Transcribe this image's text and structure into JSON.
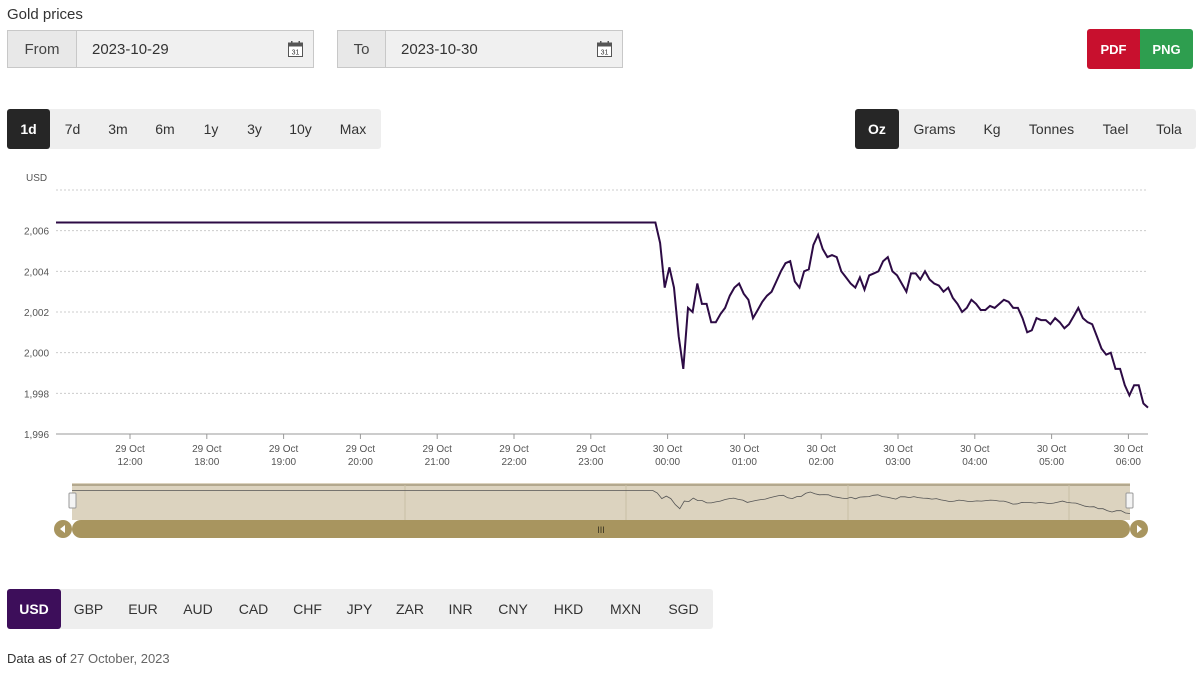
{
  "title": "Gold prices",
  "from": {
    "label": "From",
    "value": "2023-10-29"
  },
  "to": {
    "label": "To",
    "value": "2023-10-30"
  },
  "calendar_icon_text": "31",
  "export": {
    "pdf": "PDF",
    "png": "PNG"
  },
  "ranges": [
    "1d",
    "7d",
    "3m",
    "6m",
    "1y",
    "3y",
    "10y",
    "Max"
  ],
  "active_range": "1d",
  "units": [
    "Oz",
    "Grams",
    "Kg",
    "Tonnes",
    "Tael",
    "Tola"
  ],
  "active_unit": "Oz",
  "currencies": [
    "USD",
    "GBP",
    "EUR",
    "AUD",
    "CAD",
    "CHF",
    "JPY",
    "ZAR",
    "INR",
    "CNY",
    "HKD",
    "MXN",
    "SGD"
  ],
  "active_currency": "USD",
  "navigator_handle_text": "III",
  "footer": {
    "prefix": "Data as of",
    "date": "27 October, 2023"
  },
  "colors": {
    "line": "#2d0b45",
    "active_currency": "#3d0e5a",
    "active_dark": "#262626",
    "pdf": "#c8102e",
    "png": "#2e9e4f",
    "navigator": "#b5a47a"
  },
  "chart_data": {
    "type": "line",
    "ylabel": "USD",
    "ylim": [
      1996,
      2008
    ],
    "yticks": [
      "2,006",
      "2,004",
      "2,002",
      "2,000",
      "1,998",
      "1,996"
    ],
    "ytick_values": [
      2006,
      2004,
      2002,
      2000,
      1998,
      1996
    ],
    "xticks": [
      {
        "date": "29 Oct",
        "time": "12:00"
      },
      {
        "date": "29 Oct",
        "time": "18:00"
      },
      {
        "date": "29 Oct",
        "time": "19:00"
      },
      {
        "date": "29 Oct",
        "time": "20:00"
      },
      {
        "date": "29 Oct",
        "time": "21:00"
      },
      {
        "date": "29 Oct",
        "time": "22:00"
      },
      {
        "date": "29 Oct",
        "time": "23:00"
      },
      {
        "date": "30 Oct",
        "time": "00:00"
      },
      {
        "date": "30 Oct",
        "time": "01:00"
      },
      {
        "date": "30 Oct",
        "time": "02:00"
      },
      {
        "date": "30 Oct",
        "time": "03:00"
      },
      {
        "date": "30 Oct",
        "time": "04:00"
      },
      {
        "date": "30 Oct",
        "time": "05:00"
      },
      {
        "date": "30 Oct",
        "time": "06:00"
      }
    ],
    "grid": true,
    "series": [
      {
        "values": [
          2006.4,
          2006.4,
          2006.4,
          2006.4,
          2006.4,
          2006.4,
          2006.4,
          2006.4,
          2006.4,
          2006.4,
          2006.4,
          2006.4,
          2006.4,
          2006.4,
          2006.4,
          2006.4,
          2006.4,
          2006.4,
          2006.4,
          2006.4,
          2006.4,
          2006.4,
          2006.4,
          2006.4,
          2006.4,
          2006.4,
          2006.4,
          2006.4,
          2006.4,
          2006.4,
          2006.4,
          2006.4,
          2006.4,
          2006.4,
          2006.4,
          2006.4,
          2006.4,
          2006.4,
          2006.4,
          2006.4,
          2006.4,
          2006.4,
          2006.4,
          2006.4,
          2006.4,
          2006.4,
          2006.4,
          2006.4,
          2006.4,
          2006.4,
          2006.4,
          2006.4,
          2006.4,
          2006.4,
          2006.4,
          2006.4,
          2006.4,
          2006.4,
          2006.4,
          2006.4,
          2006.4,
          2006.4,
          2006.4,
          2006.4,
          2006.4,
          2006.4,
          2006.4,
          2006.4,
          2006.4,
          2006.4,
          2006.4,
          2006.4,
          2006.4,
          2006.4,
          2006.4,
          2006.4,
          2006.4,
          2006.4,
          2006.4,
          2006.4,
          2006.4,
          2006.4,
          2006.4,
          2006.4,
          2006.4,
          2006.4,
          2006.4,
          2006.4,
          2006.4,
          2006.4,
          2006.4,
          2006.4,
          2006.4,
          2006.4,
          2006.4,
          2006.4,
          2006.4,
          2006.4,
          2006.4,
          2006.4,
          2006.4,
          2006.4,
          2006.4,
          2006.4,
          2006.4,
          2006.4,
          2006.4,
          2006.4,
          2006.4,
          2006.4,
          2006.4,
          2006.4,
          2006.4,
          2006.4,
          2006.4,
          2006.4,
          2006.4,
          2006.4,
          2006.4,
          2006.4,
          2006.4,
          2006.4,
          2006.4,
          2006.4,
          2006.4,
          2006.4,
          2006.4,
          2006.4,
          2006.4,
          2006.4,
          2005.4,
          2003.2,
          2004.2,
          2003.2,
          2000.8,
          1999.2,
          2002.2,
          2002.0,
          2003.4,
          2002.4,
          2002.4,
          2001.5,
          2001.5,
          2001.9,
          2002.2,
          2002.8,
          2003.2,
          2003.4,
          2002.9,
          2002.6,
          2001.7,
          2002.1,
          2002.5,
          2002.8,
          2003.0,
          2003.5,
          2004.0,
          2004.4,
          2004.5,
          2003.5,
          2003.2,
          2004.0,
          2004.1,
          2005.3,
          2005.8,
          2005.1,
          2004.7,
          2004.8,
          2004.7,
          2004.0,
          2003.7,
          2003.4,
          2003.2,
          2003.7,
          2003.1,
          2003.8,
          2003.9,
          2004.0,
          2004.5,
          2004.7,
          2004.0,
          2003.8,
          2003.4,
          2003.0,
          2003.9,
          2003.9,
          2003.6,
          2004.0,
          2003.6,
          2003.4,
          2003.3,
          2003.0,
          2003.2,
          2002.7,
          2002.4,
          2002.0,
          2002.2,
          2002.6,
          2002.4,
          2002.1,
          2002.1,
          2002.3,
          2002.2,
          2002.4,
          2002.6,
          2002.5,
          2002.2,
          2002.2,
          2001.7,
          2001.0,
          2001.1,
          2001.7,
          2001.6,
          2001.6,
          2001.4,
          2001.7,
          2001.5,
          2001.2,
          2001.4,
          2001.8,
          2002.2,
          2001.7,
          2001.5,
          2001.4,
          2000.8,
          2000.2,
          1999.9,
          2000.0,
          1999.2,
          1999.2,
          1998.4,
          1997.9,
          1998.4,
          1998.4,
          1997.5,
          1997.3
        ]
      }
    ],
    "navigator": true
  }
}
